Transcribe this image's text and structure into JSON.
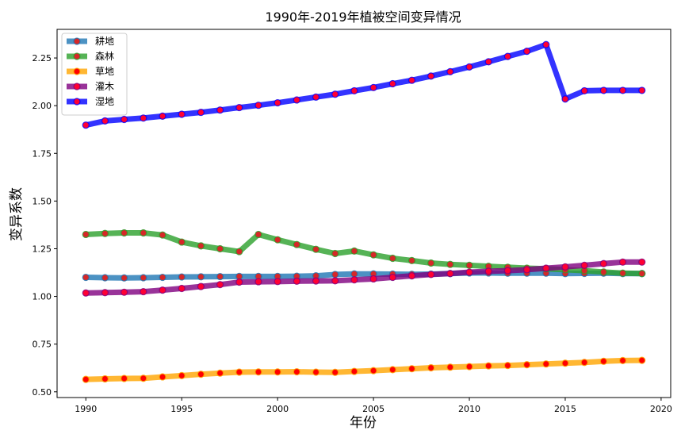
{
  "chart_data": {
    "type": "line",
    "title": "1990年-2019年植被空间变异情况",
    "xlabel": "年份",
    "ylabel": "变异系数",
    "x": [
      1990,
      1991,
      1992,
      1993,
      1994,
      1995,
      1996,
      1997,
      1998,
      1999,
      2000,
      2001,
      2002,
      2003,
      2004,
      2005,
      2006,
      2007,
      2008,
      2009,
      2010,
      2011,
      2012,
      2013,
      2014,
      2015,
      2016,
      2017,
      2018,
      2019
    ],
    "xlim": [
      1988.5,
      2020.5
    ],
    "ylim": [
      0.47,
      2.4
    ],
    "xticks": [
      1990,
      1995,
      2000,
      2005,
      2010,
      2015,
      2020
    ],
    "yticks": [
      "0.50",
      "0.75",
      "1.00",
      "1.25",
      "1.50",
      "1.75",
      "2.00",
      "2.25"
    ],
    "legend_position": "top-left",
    "grid": false,
    "series": [
      {
        "name": "耕地",
        "line_color": "#1f77b4",
        "marker_face": "#d62728",
        "values": [
          1.1,
          1.098,
          1.097,
          1.098,
          1.1,
          1.102,
          1.103,
          1.104,
          1.105,
          1.105,
          1.105,
          1.106,
          1.108,
          1.115,
          1.118,
          1.118,
          1.117,
          1.116,
          1.117,
          1.12,
          1.123,
          1.123,
          1.122,
          1.122,
          1.122,
          1.12,
          1.121,
          1.122,
          1.12,
          1.12
        ]
      },
      {
        "name": "森林",
        "line_color": "#2ca02c",
        "marker_face": "#d62728",
        "values": [
          1.325,
          1.33,
          1.333,
          1.333,
          1.322,
          1.285,
          1.265,
          1.25,
          1.235,
          1.325,
          1.297,
          1.272,
          1.247,
          1.225,
          1.238,
          1.218,
          1.2,
          1.188,
          1.175,
          1.168,
          1.163,
          1.158,
          1.153,
          1.148,
          1.145,
          1.14,
          1.135,
          1.128,
          1.122,
          1.12
        ]
      },
      {
        "name": "草地",
        "line_color": "#ffa500",
        "marker_face": "#ff0000",
        "values": [
          0.565,
          0.568,
          0.57,
          0.571,
          0.578,
          0.585,
          0.592,
          0.598,
          0.603,
          0.604,
          0.604,
          0.605,
          0.603,
          0.602,
          0.607,
          0.611,
          0.616,
          0.621,
          0.626,
          0.629,
          0.632,
          0.636,
          0.638,
          0.642,
          0.646,
          0.65,
          0.654,
          0.66,
          0.664,
          0.665
        ]
      },
      {
        "name": "灌木",
        "line_color": "#800080",
        "marker_face": "#ff0033",
        "values": [
          1.018,
          1.02,
          1.022,
          1.025,
          1.033,
          1.042,
          1.052,
          1.062,
          1.075,
          1.077,
          1.078,
          1.08,
          1.081,
          1.082,
          1.087,
          1.092,
          1.1,
          1.108,
          1.115,
          1.12,
          1.127,
          1.132,
          1.135,
          1.14,
          1.148,
          1.155,
          1.163,
          1.172,
          1.18,
          1.18
        ]
      },
      {
        "name": "湿地",
        "line_color": "#0000ff",
        "marker_face": "#ff0033",
        "values": [
          1.898,
          1.92,
          1.928,
          1.935,
          1.945,
          1.955,
          1.965,
          1.977,
          1.99,
          2.002,
          2.015,
          2.03,
          2.045,
          2.06,
          2.078,
          2.095,
          2.115,
          2.133,
          2.155,
          2.178,
          2.203,
          2.23,
          2.258,
          2.285,
          2.32,
          2.035,
          2.078,
          2.08,
          2.08,
          2.08
        ]
      }
    ]
  }
}
